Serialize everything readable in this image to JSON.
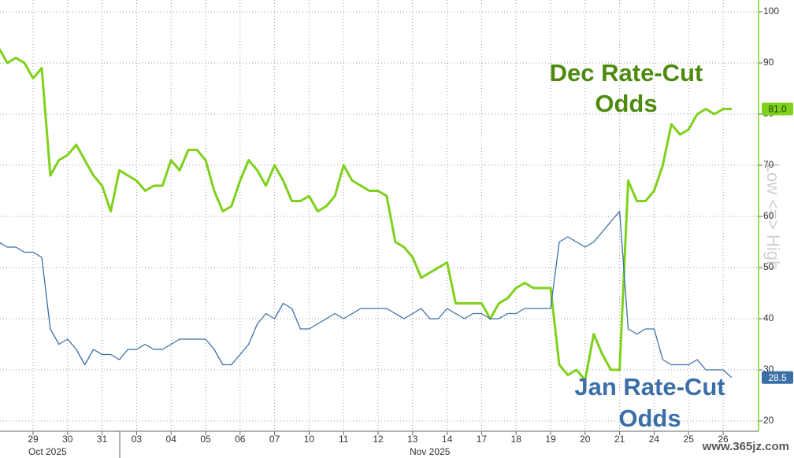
{
  "chart_data": {
    "type": "line",
    "categories": [
      null,
      null,
      null,
      null,
      "29",
      null,
      null,
      null,
      "30",
      null,
      null,
      null,
      "31",
      null,
      null,
      null,
      "03",
      null,
      null,
      null,
      "04",
      null,
      null,
      null,
      "05",
      null,
      null,
      null,
      "06",
      null,
      null,
      null,
      "07",
      null,
      null,
      null,
      "10",
      null,
      null,
      null,
      "11",
      null,
      null,
      null,
      "12",
      null,
      null,
      null,
      "13",
      null,
      null,
      null,
      "14",
      null,
      null,
      null,
      "17",
      null,
      null,
      null,
      "18",
      null,
      null,
      null,
      "19",
      null,
      null,
      null,
      "20",
      null,
      null,
      null,
      "21",
      null,
      null,
      null,
      "24",
      null,
      null,
      null,
      "25",
      null,
      null,
      null,
      "26",
      null
    ],
    "month_labels": [
      "Oct 2025",
      "Nov 2025"
    ],
    "series": [
      {
        "name": "Dec Rate-Cut Odds",
        "color": "#7fd11b",
        "end_label": "81.0",
        "values": [
          93,
          90,
          91,
          90,
          87,
          89,
          68,
          71,
          72,
          74,
          71,
          68,
          66,
          61,
          69,
          68,
          67,
          65,
          66,
          66,
          71,
          69,
          73,
          73,
          71,
          65,
          61,
          62,
          67,
          71,
          69,
          66,
          70,
          67,
          63,
          63,
          64,
          61,
          62,
          64,
          70,
          67,
          66,
          65,
          65,
          64,
          55,
          54,
          52,
          48,
          49,
          50,
          51,
          43,
          43,
          43,
          43,
          40,
          43,
          44,
          46,
          47,
          46,
          46,
          46,
          31,
          29,
          30,
          28,
          37,
          33,
          30,
          30,
          67,
          63,
          63,
          65,
          70,
          78,
          76,
          77,
          80,
          81,
          80,
          81,
          81
        ]
      },
      {
        "name": "Jan Rate-Cut Odds",
        "color": "#3b6fa8",
        "end_label": "28.5",
        "values": [
          55,
          54,
          54,
          53,
          53,
          52,
          38,
          35,
          36,
          34,
          31,
          34,
          33,
          33,
          32,
          34,
          34,
          35,
          34,
          34,
          35,
          36,
          36,
          36,
          36,
          34,
          31,
          31,
          33,
          35,
          39,
          41,
          40,
          43,
          42,
          38,
          38,
          39,
          40,
          41,
          40,
          41,
          42,
          42,
          42,
          42,
          41,
          40,
          41,
          42,
          40,
          40,
          42,
          41,
          40,
          41,
          41,
          40,
          40,
          41,
          41,
          42,
          42,
          42,
          42,
          55,
          56,
          55,
          54,
          55,
          57,
          59,
          61,
          38,
          37,
          38,
          38,
          32,
          31,
          31,
          31,
          32,
          30,
          30,
          30,
          28.5
        ]
      }
    ],
    "ylim": [
      20,
      100
    ],
    "yticks": [
      20,
      30,
      40,
      50,
      60,
      70,
      80,
      90,
      100
    ],
    "grid": true,
    "y_axis_label": "Low <=> High",
    "watermark": "www.365jz.com"
  }
}
